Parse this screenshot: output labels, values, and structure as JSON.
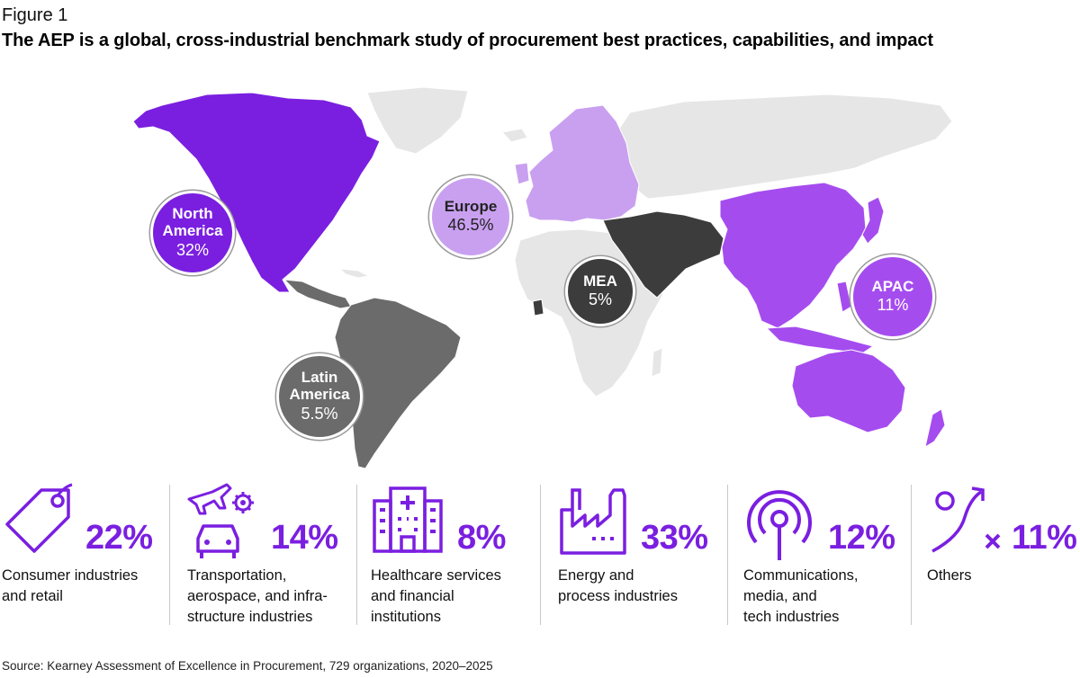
{
  "figure_label": "Figure 1",
  "title": "The AEP is a global, cross-industrial benchmark study of procurement best practices, capabilities, and impact",
  "colors": {
    "north_america": "#7a1fe0",
    "europe": "#c9a0f0",
    "mea": "#3c3c3c",
    "latin_america": "#6b6b6b",
    "apac": "#a54cef",
    "other_land": "#e6e6e6",
    "industry_accent": "#7a1fe0"
  },
  "regions": [
    {
      "id": "north-america",
      "name_lines": [
        "North",
        "America"
      ],
      "pct": "32%"
    },
    {
      "id": "europe",
      "name_lines": [
        "Europe"
      ],
      "pct": "46.5%"
    },
    {
      "id": "mea",
      "name_lines": [
        "MEA"
      ],
      "pct": "5%"
    },
    {
      "id": "apac",
      "name_lines": [
        "APAC"
      ],
      "pct": "11%"
    },
    {
      "id": "latin-america",
      "name_lines": [
        "Latin",
        "America"
      ],
      "pct": "5.5%"
    }
  ],
  "industries": [
    {
      "icon": "price-tag-icon",
      "pct": "22%",
      "label": "Consumer industries\nand retail"
    },
    {
      "icon": "plane-car-gear-icon",
      "pct": "14%",
      "label": "Transportation,\naerospace, and infra-\nstructure industries"
    },
    {
      "icon": "hospital-building-icon",
      "pct": "8%",
      "label": "Healthcare services\nand financial\ninstitutions"
    },
    {
      "icon": "factory-icon",
      "pct": "33%",
      "label": "Energy and\nprocess industries"
    },
    {
      "icon": "broadcast-antenna-icon",
      "pct": "12%",
      "label": "Communications,\nmedia, and\ntech industries"
    },
    {
      "icon": "route-arrow-x-icon",
      "pct": "11%",
      "label": "Others"
    }
  ],
  "source": "Source: Kearney Assessment of Excellence in Procurement, 729 organizations, 2020–2025"
}
